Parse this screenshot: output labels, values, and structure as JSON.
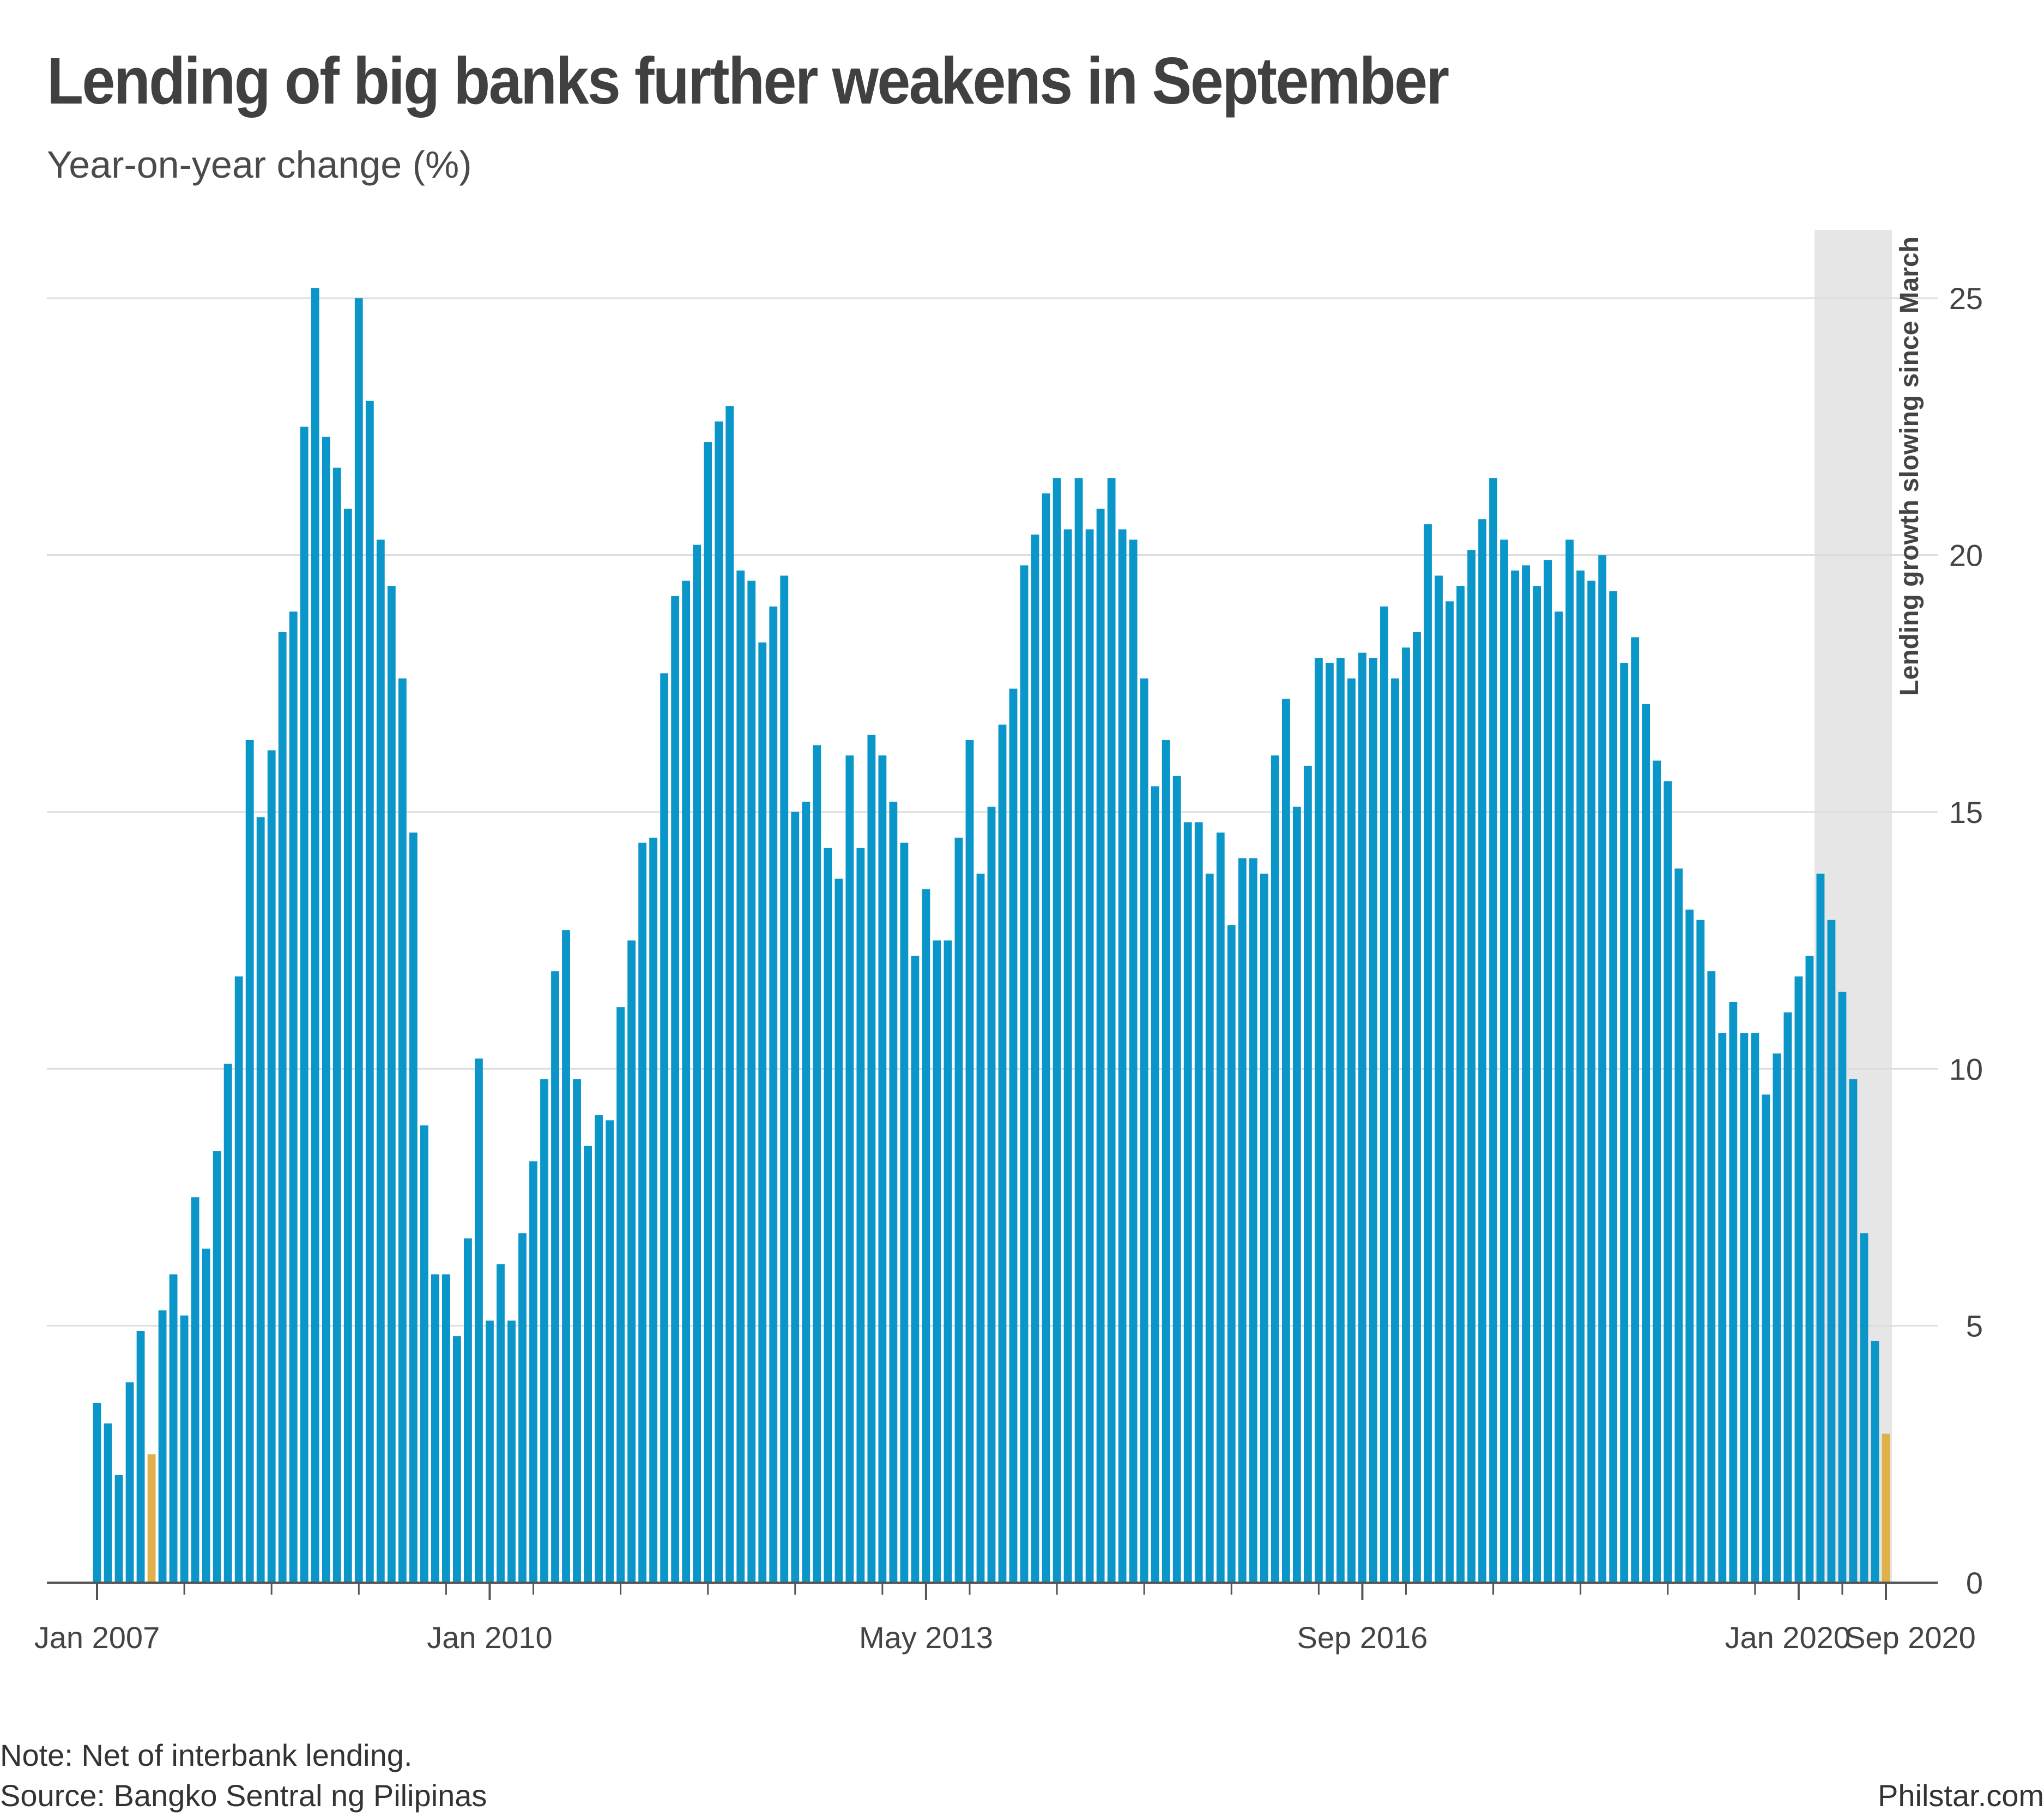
{
  "title": "Lending of big banks further weakens in September",
  "subtitle": "Year-on-year change (%)",
  "note": "Note: Net of interbank lending.",
  "source": "Source: Bangko Sentral ng Pilipinas",
  "credit": "Philstar.com",
  "annotation": "Lending growth slowing since March",
  "colors": {
    "bar": "#0a96c8",
    "highlight": "#e0b04a",
    "shade": "#e6e6e6",
    "grid": "#dddddd",
    "axis": "#555555",
    "text": "#444444"
  },
  "chart_data": {
    "type": "bar",
    "title": "Lending of big banks further weakens in September",
    "subtitle": "Year-on-year change (%)",
    "x_start": "Jan 2007",
    "x_end": "Sep 2020",
    "frequency": "monthly",
    "x_tick_labels": [
      "Jan 2007",
      "Jan 2010",
      "May 2013",
      "Sep 2016",
      "Jan 2020",
      "Sep 2020"
    ],
    "y_ticks": [
      0,
      5,
      10,
      15,
      20,
      25
    ],
    "ylim": [
      0,
      25.5
    ],
    "y_axis_position": "right",
    "grid": true,
    "highlighted_months": [
      "Jun 2007",
      "Sep 2020"
    ],
    "shaded_period": {
      "from": "Mar 2020",
      "to": "Sep 2020",
      "label": "Lending growth slowing since March"
    },
    "values": [
      3.5,
      3.1,
      2.1,
      3.9,
      4.9,
      2.5,
      5.3,
      6.0,
      5.2,
      7.5,
      6.5,
      8.4,
      10.1,
      11.8,
      16.4,
      14.9,
      16.2,
      18.5,
      18.9,
      22.5,
      25.2,
      22.3,
      21.7,
      20.9,
      25.0,
      23.0,
      20.3,
      19.4,
      17.6,
      14.6,
      8.9,
      6.0,
      6.0,
      4.8,
      6.7,
      10.2,
      5.1,
      6.2,
      5.1,
      6.8,
      8.2,
      9.8,
      11.9,
      12.7,
      9.8,
      8.5,
      9.1,
      9.0,
      11.2,
      12.5,
      14.4,
      14.5,
      17.7,
      19.2,
      19.5,
      20.2,
      22.2,
      22.6,
      22.9,
      19.7,
      19.5,
      18.3,
      19.0,
      19.6,
      15.0,
      15.2,
      16.3,
      14.3,
      13.7,
      16.1,
      14.3,
      16.5,
      16.1,
      15.2,
      14.4,
      12.2,
      13.5,
      12.5,
      12.5,
      14.5,
      16.4,
      13.8,
      15.1,
      16.7,
      17.4,
      19.8,
      20.4,
      21.2,
      21.5,
      20.5,
      21.5,
      20.5,
      20.9,
      21.5,
      20.5,
      20.3,
      17.6,
      15.5,
      16.4,
      15.7,
      14.8,
      14.8,
      13.8,
      14.6,
      12.8,
      14.1,
      14.1,
      13.8,
      16.1,
      17.2,
      15.1,
      15.9,
      18.0,
      17.9,
      18.0,
      17.6,
      18.1,
      18.0,
      19.0,
      17.6,
      18.2,
      18.5,
      20.6,
      19.6,
      19.1,
      19.4,
      20.1,
      20.7,
      21.5,
      20.3,
      19.7,
      19.8,
      19.4,
      19.9,
      18.9,
      20.3,
      19.7,
      19.5,
      20.0,
      19.3,
      17.9,
      18.4,
      17.1,
      16.0,
      15.6,
      13.9,
      13.1,
      12.9,
      11.9,
      10.7,
      11.3,
      10.7,
      10.7,
      9.5,
      10.3,
      11.1,
      11.8,
      12.2,
      13.8,
      12.9,
      11.5,
      9.8,
      6.8,
      4.7,
      2.9
    ]
  }
}
